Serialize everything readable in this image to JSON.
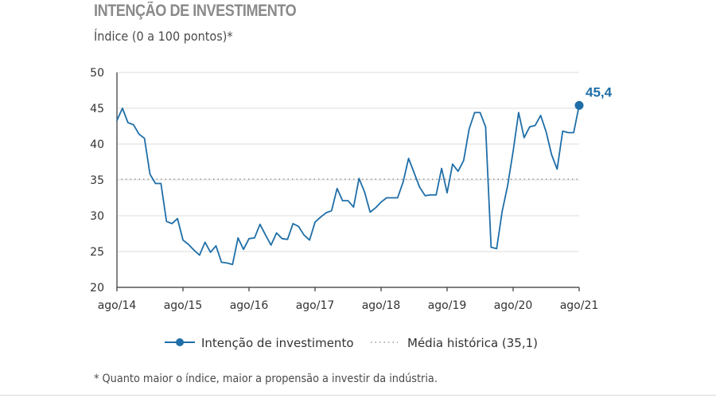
{
  "colors": {
    "series": "#1f6ea7",
    "average": "#9a9a9a",
    "grid": "#dcdcdc",
    "axis": "#333333"
  },
  "footnote": "* Quanto maior o índice, maior a propensão a investir da indústria.",
  "chart_data": {
    "type": "line",
    "title": "INTENÇÃO DE INVESTIMENTO",
    "subtitle": "Índice (0 a 100 pontos)*",
    "xlabel": "",
    "ylabel": "",
    "ylim": [
      20,
      50
    ],
    "yticks": [
      20,
      25,
      30,
      35,
      40,
      45,
      50
    ],
    "xticks": [
      "ago/14",
      "ago/15",
      "ago/16",
      "ago/17",
      "ago/18",
      "ago/19",
      "ago/20",
      "ago/21"
    ],
    "grid": true,
    "legend_position": "bottom",
    "series": [
      {
        "name": "Intenção de investimento",
        "style": "line",
        "color": "#1f6ea7",
        "start": "ago/14",
        "values": [
          43.3,
          45.0,
          43.0,
          42.7,
          41.4,
          40.8,
          35.8,
          34.5,
          34.5,
          29.2,
          28.9,
          29.6,
          26.6,
          26.0,
          25.2,
          24.5,
          26.3,
          24.9,
          25.8,
          23.5,
          23.4,
          23.2,
          26.9,
          25.3,
          26.8,
          26.9,
          28.8,
          27.3,
          25.9,
          27.6,
          26.8,
          26.7,
          28.9,
          28.5,
          27.3,
          26.6,
          29.1,
          29.8,
          30.4,
          30.7,
          33.8,
          32.1,
          32.1,
          31.2,
          35.2,
          33.3,
          30.5,
          31.1,
          31.9,
          32.5,
          32.5,
          32.5,
          34.7,
          38.0,
          36.0,
          34.0,
          32.8,
          32.9,
          32.9,
          36.6,
          33.2,
          37.2,
          36.2,
          37.7,
          42.1,
          44.4,
          44.4,
          42.4,
          25.6,
          25.4,
          30.6,
          34.2,
          39.0,
          44.4,
          40.9,
          42.4,
          42.6,
          44.0,
          41.7,
          38.5,
          36.5,
          41.8,
          41.6,
          41.6,
          45.4
        ]
      },
      {
        "name": "Média histórica (35,1)",
        "style": "dotted",
        "color": "#9a9a9a",
        "value": 35.1
      }
    ],
    "annotations": [
      {
        "text": "45,4",
        "x": "ago/21",
        "y": 45.4
      }
    ]
  }
}
